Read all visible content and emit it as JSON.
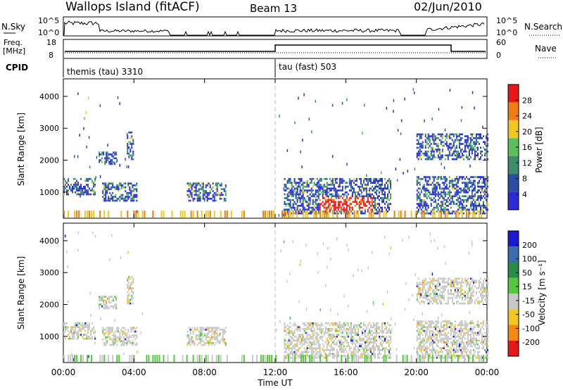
{
  "header": {
    "title": "Wallops Island (fitACF)",
    "beam": "Beam 13",
    "date": "02/Jun/2010"
  },
  "top_panels": {
    "nsky_label": "N.Sky",
    "nsky_ticks": [
      "10^5",
      "10^0"
    ],
    "nsearch_label": "N.Search",
    "nsearch_ticks": [
      "10^5",
      "10^0"
    ],
    "freq_label_1": "Freq.",
    "freq_label_2": "[MHz]",
    "freq_ticks": [
      "18",
      "8"
    ],
    "nave_label": "Nave",
    "nave_ticks": [
      "60",
      "0"
    ],
    "cpid_label": "CPID",
    "cpid_segments": [
      {
        "label": "themis (tau) 3310",
        "start_hour": 0
      },
      {
        "label": "tau (fast) 503",
        "start_hour": 12
      }
    ]
  },
  "chart_data": [
    {
      "type": "heatmap",
      "name": "power",
      "ylabel": "Slant Range [km]",
      "yticks": [
        "4000",
        "3000",
        "2000",
        "1000"
      ],
      "ylim": [
        180,
        4550
      ],
      "colorbar_label": "Power [dB]",
      "colorbar_ticks": [
        "28",
        "24",
        "20",
        "16",
        "12",
        "8",
        "4"
      ],
      "colors": [
        "#2a2ad8",
        "#2b4ea5",
        "#3d8d6a",
        "#5cbf5a",
        "#f0c820",
        "#f07d10",
        "#e81818"
      ],
      "ionospheric_bands_km": [
        {
          "hours": [
            0.0,
            1.8
          ],
          "range": [
            900,
            1400
          ]
        },
        {
          "hours": [
            2.0,
            3.0
          ],
          "range": [
            1850,
            2250
          ]
        },
        {
          "hours": [
            3.6,
            4.0
          ],
          "range": [
            2000,
            2900
          ]
        },
        {
          "hours": [
            2.2,
            4.2
          ],
          "range": [
            700,
            1300
          ]
        },
        {
          "hours": [
            7.0,
            9.2
          ],
          "range": [
            700,
            1300
          ]
        },
        {
          "hours": [
            12.5,
            18.5
          ],
          "range": [
            300,
            1400
          ]
        },
        {
          "hours": [
            20.0,
            24.0
          ],
          "range": [
            300,
            1500
          ]
        },
        {
          "hours": [
            20.0,
            24.0
          ],
          "range": [
            2000,
            2800
          ]
        }
      ],
      "peak_power_region": {
        "hours": [
          14.5,
          17.5
        ],
        "range_km": [
          400,
          800
        ],
        "power_db": 28
      }
    },
    {
      "type": "heatmap",
      "name": "velocity",
      "ylabel": "Slant Range [km]",
      "yticks": [
        "4000",
        "3000",
        "2000",
        "1000"
      ],
      "ylim": [
        180,
        4550
      ],
      "colorbar_label": "Velocity [m s⁻¹]",
      "colorbar_ticks": [
        "200",
        "100",
        "50",
        "15",
        "-15",
        "-50",
        "-100",
        "-200"
      ],
      "colors": [
        "#1a1ad0",
        "#3b6bb0",
        "#2a8a4a",
        "#55c83c",
        "#c8c8c8",
        "#f0c820",
        "#f08a10",
        "#e81818"
      ],
      "dominant_value_band": "-15 to 15"
    }
  ],
  "x_axis": {
    "label": "Time UT",
    "ticks": [
      "00:00",
      "04:00",
      "08:00",
      "12:00",
      "16:00",
      "20:00",
      "00:00"
    ],
    "range_hours": [
      0,
      24
    ]
  }
}
